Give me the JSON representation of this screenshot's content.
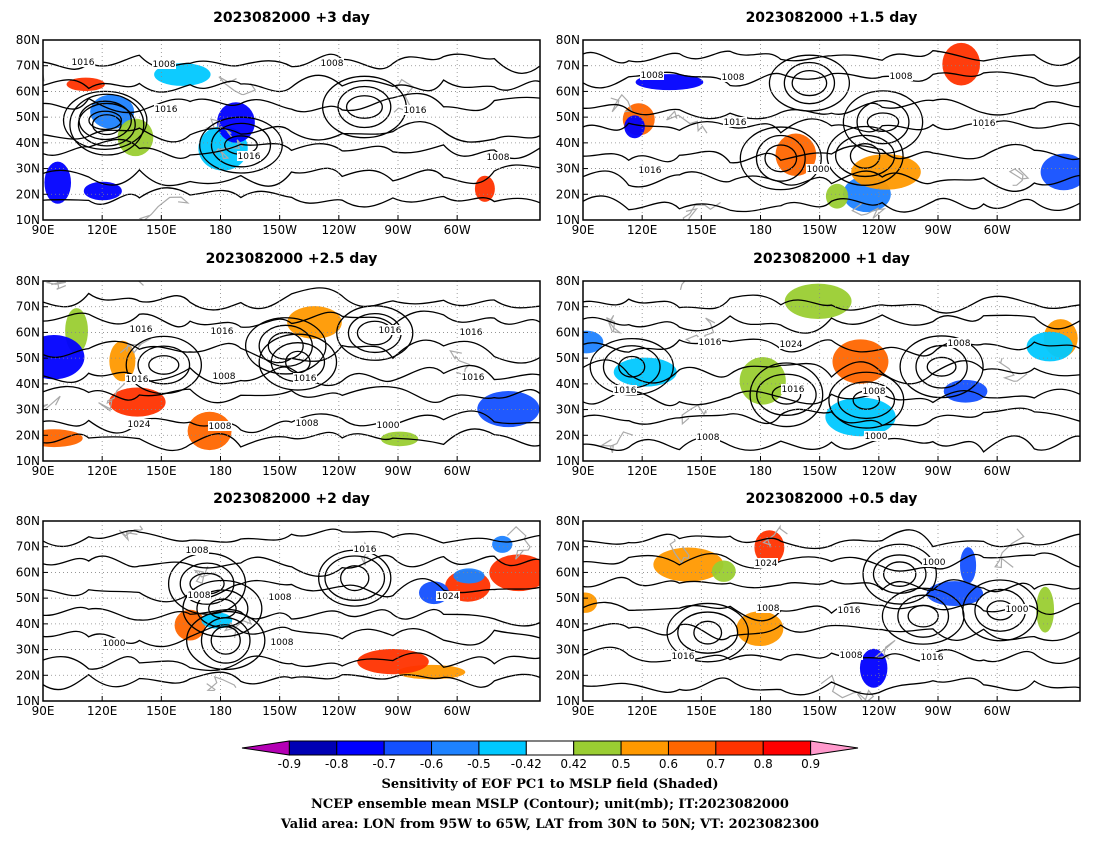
{
  "panels": [
    {
      "title": "2023082000 +3 day",
      "col": 0,
      "row": 0,
      "labels": [
        "1016",
        "1016",
        "1016",
        "1008",
        "1016",
        "1008",
        "1008"
      ]
    },
    {
      "title": "2023082000 +1.5 day",
      "col": 1,
      "row": 0,
      "labels": [
        "1008",
        "1016",
        "1000",
        "1008",
        "1016",
        "1016",
        "1008"
      ]
    },
    {
      "title": "2023082000 +2.5 day",
      "col": 0,
      "row": 1,
      "labels": [
        "1016",
        "1008",
        "1008",
        "1016",
        "1016",
        "1024",
        "1016",
        "1016",
        "1000",
        "1016",
        "1016",
        "1008"
      ]
    },
    {
      "title": "2023082000 +1 day",
      "col": 1,
      "row": 1,
      "labels": [
        "1016",
        "1016",
        "1000",
        "1008",
        "1016",
        "1008",
        "1024",
        "1008"
      ]
    },
    {
      "title": "2023082000 +2 day",
      "col": 0,
      "row": 2,
      "labels": [
        "1008",
        "1008",
        "1016",
        "1024",
        "1000",
        "1008",
        "1008"
      ]
    },
    {
      "title": "2023082000 +0.5 day",
      "col": 1,
      "row": 2,
      "labels": [
        "1008",
        "1008",
        "1000",
        "1000",
        "1016",
        "1024",
        "1016",
        "1016"
      ]
    }
  ],
  "axes": {
    "lat_labels": [
      "80N",
      "70N",
      "60N",
      "50N",
      "40N",
      "30N",
      "20N",
      "10N"
    ],
    "lon_labels": [
      "90E",
      "120E",
      "150E",
      "180",
      "150W",
      "120W",
      "90W",
      "60W"
    ]
  },
  "colorbar": {
    "ticks": [
      "-0.9",
      "-0.8",
      "-0.7",
      "-0.6",
      "-0.5",
      "-0.42",
      "0.42",
      "0.5",
      "0.6",
      "0.7",
      "0.8",
      "0.9"
    ],
    "colors": [
      "#b400b4",
      "#0000b4",
      "#0000ff",
      "#1450ff",
      "#1e82ff",
      "#00c8ff",
      "#ffffff",
      "#9acd32",
      "#ff9900",
      "#ff6600",
      "#ff3300",
      "#ff0000",
      "#ff99cc"
    ]
  },
  "caption": {
    "line1": "Sensitivity of EOF PC1 to MSLP field (Shaded)",
    "line2": "NCEP ensemble mean MSLP (Contour); unit(mb); IT:2023082000",
    "line3": "Valid area: LON from 95W to 65W, LAT from 30N to 50N; VT: 2023082300"
  }
}
